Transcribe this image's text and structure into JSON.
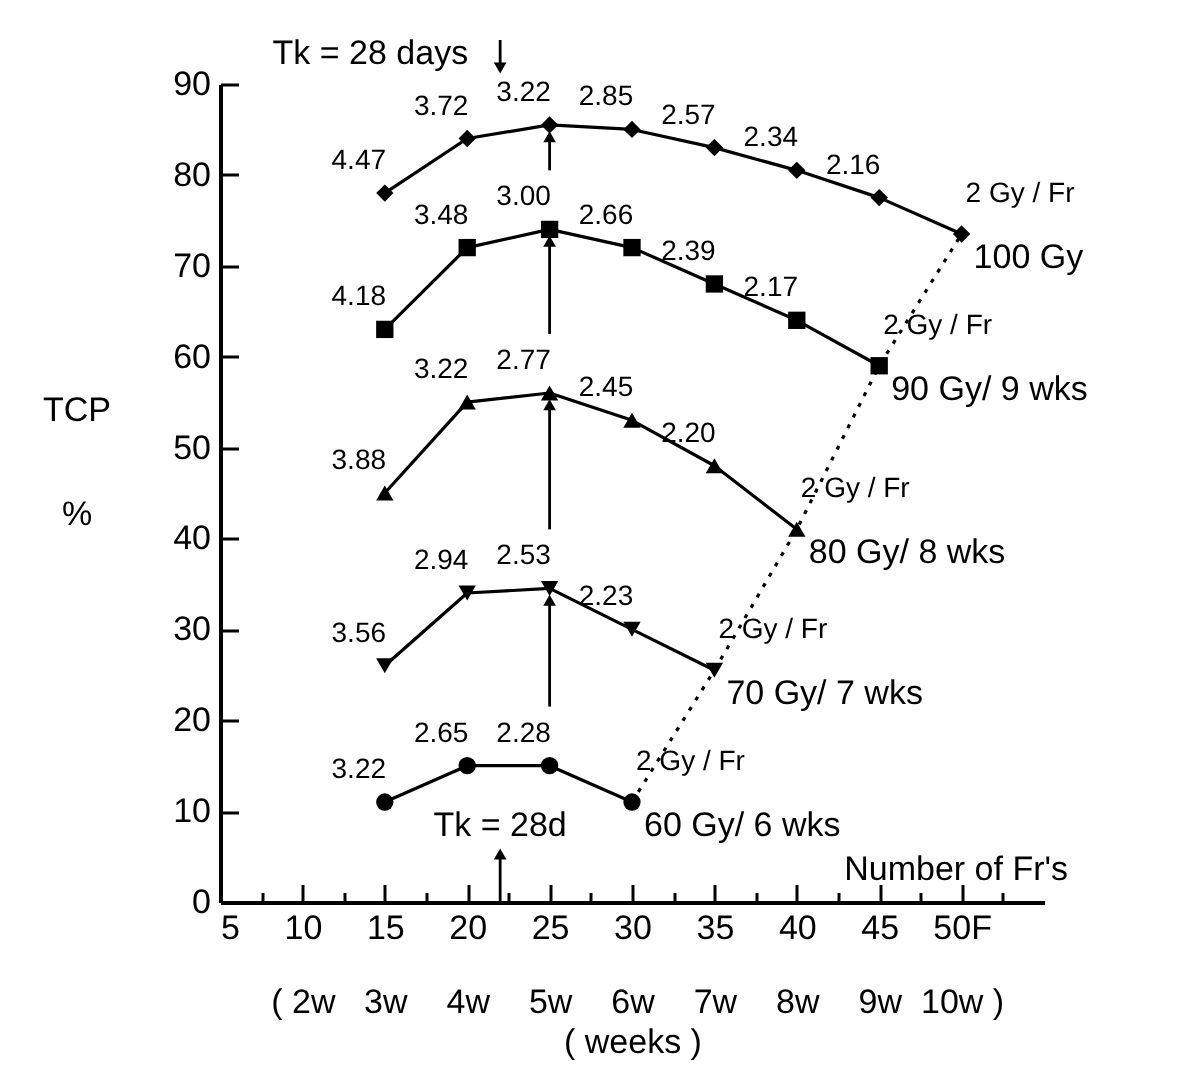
{
  "chart_data": {
    "type": "line",
    "xlabel": "Number of Fr's",
    "ylabel": "TCP %",
    "x2label": "( weeks )",
    "xlim": [
      5,
      55
    ],
    "ylim": [
      0,
      90
    ],
    "x2lim": [
      1,
      11
    ],
    "xticks": [
      5,
      {
        "value": 7.5,
        "label": null
      },
      10,
      {
        "value": 12.5,
        "label": null
      },
      15,
      {
        "value": 17.5,
        "label": null
      },
      20,
      {
        "value": 22.5,
        "label": null
      },
      25,
      {
        "value": 27.5,
        "label": null
      },
      30,
      {
        "value": 32.5,
        "label": null
      },
      35,
      {
        "value": 37.5,
        "label": null
      },
      40,
      {
        "value": 42.5,
        "label": null
      },
      45,
      {
        "value": 47.5,
        "label": null
      },
      {
        "value": 50,
        "label": "50F"
      },
      {
        "value": 52.5,
        "label": null
      }
    ],
    "x2ticks": [
      {
        "value": 2,
        "label": "( 2w"
      },
      {
        "value": 3,
        "label": "3w"
      },
      {
        "value": 4,
        "label": "4w"
      },
      {
        "value": 5,
        "label": "5w"
      },
      {
        "value": 6,
        "label": "6w"
      },
      {
        "value": 7,
        "label": "7w"
      },
      {
        "value": 8,
        "label": "8w"
      },
      {
        "value": 9,
        "label": "9w"
      },
      {
        "value": 10,
        "label": "10w )"
      }
    ],
    "yticks": [
      0,
      10,
      20,
      30,
      40,
      50,
      60,
      70,
      80,
      90
    ],
    "series": [
      {
        "name": "100 Gy",
        "color": "#000000",
        "marker": "diamond",
        "x": [
          15,
          20,
          25,
          30,
          35,
          40,
          45,
          50
        ],
        "values": [
          78,
          84,
          85.5,
          85,
          83,
          80.5,
          77.5,
          73.5
        ]
      },
      {
        "name": "90 Gy/ 9 wks",
        "color": "#000000",
        "marker": "square",
        "x": [
          15,
          20,
          25,
          30,
          35,
          40,
          45
        ],
        "values": [
          63,
          72,
          74,
          72,
          68,
          64,
          59
        ]
      },
      {
        "name": "80 Gy/ 8 wks",
        "color": "#000000",
        "marker": "triangle",
        "x": [
          15,
          20,
          25,
          30,
          35,
          40
        ],
        "values": [
          45,
          55,
          56,
          53,
          48,
          41
        ]
      },
      {
        "name": "70 Gy/ 7 wks",
        "color": "#000000",
        "marker": "triangle-down",
        "x": [
          15,
          20,
          25,
          30,
          35
        ],
        "values": [
          26,
          34,
          34.5,
          30,
          25.5
        ]
      },
      {
        "name": "60 Gy/ 6 wks",
        "color": "#000000",
        "marker": "circle",
        "x": [
          15,
          20,
          25,
          30
        ],
        "values": [
          11,
          15,
          15,
          11
        ]
      },
      {
        "type": "line",
        "color": "#000000",
        "marker": "none",
        "line_style": "dotted",
        "x": [
          30,
          35,
          40,
          45,
          50
        ],
        "values": [
          11,
          25.5,
          41,
          59,
          73.5
        ]
      }
    ],
    "annotations": [
      "Tk = 28 days",
      "Tk = 28d",
      {
        "text": "4.47",
        "x": 15,
        "y": 78
      },
      {
        "text": "3.72",
        "x": 20,
        "y": 84
      },
      {
        "text": "3.22",
        "x": 25,
        "y": 85.5
      },
      {
        "text": "2.85",
        "x": 30,
        "y": 85
      },
      {
        "text": "2.57",
        "x": 35,
        "y": 83
      },
      {
        "text": "2.34",
        "x": 40,
        "y": 80.5
      },
      {
        "text": "2.16",
        "x": 45,
        "y": 77.5
      },
      {
        "text": "2 Gy / Fr",
        "x": 50,
        "y": 73.5
      },
      {
        "text": "4.18",
        "x": 15,
        "y": 63
      },
      {
        "text": "3.48",
        "x": 20,
        "y": 72
      },
      {
        "text": "3.00",
        "x": 25,
        "y": 74
      },
      {
        "text": "2.66",
        "x": 30,
        "y": 72
      },
      {
        "text": "2.39",
        "x": 35,
        "y": 68
      },
      {
        "text": "2.17",
        "x": 40,
        "y": 64
      },
      {
        "text": "2 Gy / Fr",
        "x": 45,
        "y": 59
      },
      {
        "text": "3.88",
        "x": 15,
        "y": 45
      },
      {
        "text": "3.22",
        "x": 20,
        "y": 55
      },
      {
        "text": "2.77",
        "x": 25,
        "y": 56
      },
      {
        "text": "2.45",
        "x": 30,
        "y": 53
      },
      {
        "text": "2.20",
        "x": 35,
        "y": 48
      },
      {
        "text": "2 Gy / Fr",
        "x": 40,
        "y": 41
      },
      {
        "text": "3.56",
        "x": 15,
        "y": 26
      },
      {
        "text": "2.94",
        "x": 20,
        "y": 34
      },
      {
        "text": "2.53",
        "x": 25,
        "y": 34.5
      },
      {
        "text": "2.23",
        "x": 30,
        "y": 30
      },
      {
        "text": "2 Gy / Fr",
        "x": 35,
        "y": 25.5
      },
      {
        "text": "3.22",
        "x": 15,
        "y": 11
      },
      {
        "text": "2.65",
        "x": 20,
        "y": 15
      },
      {
        "text": "2.28",
        "x": 25,
        "y": 15
      },
      {
        "text": "2 Gy / Fr",
        "x": 30,
        "y": 11
      }
    ]
  }
}
